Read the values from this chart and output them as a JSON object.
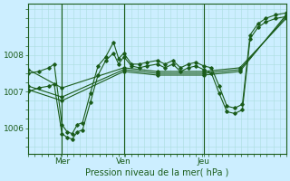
{
  "xlabel": "Pression niveau de la mer( hPa )",
  "bg_color": "#cceeff",
  "grid_minor_color": "#aadddd",
  "grid_major_color": "#aadddd",
  "line_color": "#1a5c1a",
  "vline_color": "#1a5c1a",
  "tick_label_color": "#1a5c1a",
  "ylim": [
    1005.3,
    1009.4
  ],
  "xlim": [
    0,
    1.0
  ],
  "xtick_positions": [
    0.13,
    0.37,
    0.68
  ],
  "xtick_labels": [
    "Mer",
    "Ven",
    "Jeu"
  ],
  "ytick_values": [
    1006,
    1007,
    1008
  ],
  "vline_positions": [
    0.13,
    0.37,
    0.68
  ],
  "series": [
    [
      0.0,
      1007.6,
      0.13,
      1007.1,
      0.37,
      1007.65,
      0.5,
      1007.55,
      0.68,
      1007.55,
      0.82,
      1007.65,
      1.0,
      1009.0
    ],
    [
      0.0,
      1007.15,
      0.13,
      1006.85,
      0.37,
      1007.6,
      0.5,
      1007.5,
      0.68,
      1007.5,
      0.82,
      1007.6,
      1.0,
      1009.05
    ],
    [
      0.0,
      1007.05,
      0.13,
      1006.75,
      0.37,
      1007.55,
      0.5,
      1007.45,
      0.68,
      1007.45,
      0.82,
      1007.55,
      1.0,
      1009.1
    ],
    [
      0.0,
      1007.5,
      0.04,
      1007.55,
      0.08,
      1007.65,
      0.1,
      1007.75,
      0.13,
      1006.1,
      0.15,
      1005.9,
      0.17,
      1005.85,
      0.19,
      1006.1,
      0.21,
      1006.15,
      0.24,
      1006.95,
      0.27,
      1007.7,
      0.3,
      1007.95,
      0.33,
      1008.35,
      0.35,
      1007.9,
      0.37,
      1008.05,
      0.4,
      1007.75,
      0.43,
      1007.75,
      0.46,
      1007.8,
      0.5,
      1007.85,
      0.53,
      1007.75,
      0.56,
      1007.85,
      0.59,
      1007.65,
      0.62,
      1007.75,
      0.65,
      1007.8,
      0.68,
      1007.7,
      0.71,
      1007.65,
      0.74,
      1007.15,
      0.77,
      1006.6,
      0.8,
      1006.55,
      0.83,
      1006.65,
      0.86,
      1008.55,
      0.89,
      1008.85,
      0.92,
      1009.0,
      0.96,
      1009.1,
      1.0,
      1009.15
    ],
    [
      0.0,
      1007.0,
      0.04,
      1007.1,
      0.08,
      1007.15,
      0.1,
      1007.2,
      0.13,
      1005.85,
      0.15,
      1005.75,
      0.17,
      1005.7,
      0.19,
      1005.9,
      0.21,
      1005.95,
      0.24,
      1006.7,
      0.27,
      1007.45,
      0.3,
      1007.85,
      0.33,
      1008.05,
      0.35,
      1007.75,
      0.37,
      1007.95,
      0.4,
      1007.7,
      0.43,
      1007.65,
      0.46,
      1007.7,
      0.5,
      1007.75,
      0.53,
      1007.65,
      0.56,
      1007.75,
      0.59,
      1007.55,
      0.62,
      1007.65,
      0.65,
      1007.7,
      0.68,
      1007.6,
      0.71,
      1007.5,
      0.74,
      1006.95,
      0.77,
      1006.45,
      0.8,
      1006.4,
      0.83,
      1006.5,
      0.86,
      1008.45,
      0.89,
      1008.75,
      0.92,
      1008.9,
      0.96,
      1009.0,
      1.0,
      1009.05
    ]
  ]
}
